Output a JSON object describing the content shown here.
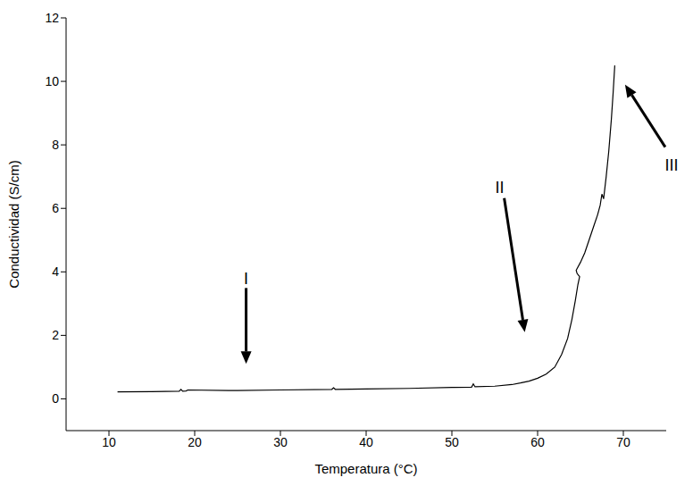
{
  "chart_data": {
    "type": "line",
    "x_label": "Temperatura (°C)",
    "y_label": "Conductividad (S/cm)",
    "color": "#000000",
    "x": [
      11,
      15,
      18.2,
      18.4,
      18.6,
      19,
      19.2,
      25,
      30,
      36,
      36.2,
      36.4,
      40,
      45,
      50,
      52.3,
      52.5,
      52.7,
      55,
      57,
      58,
      59,
      60,
      61,
      62,
      62.8,
      63.5,
      64,
      64.4,
      64.7,
      64.9,
      64.6,
      64.5,
      65,
      65.5,
      66,
      66.5,
      67,
      67.3,
      67.5,
      67.7,
      68,
      68.3,
      68.6,
      68.8,
      69
    ],
    "values": [
      0.22,
      0.23,
      0.24,
      0.3,
      0.24,
      0.25,
      0.28,
      0.26,
      0.28,
      0.3,
      0.35,
      0.3,
      0.31,
      0.33,
      0.36,
      0.37,
      0.47,
      0.38,
      0.4,
      0.45,
      0.5,
      0.56,
      0.65,
      0.78,
      1.0,
      1.4,
      1.9,
      2.5,
      3.1,
      3.6,
      3.85,
      3.95,
      4.05,
      4.3,
      4.6,
      5.0,
      5.4,
      5.8,
      6.1,
      6.45,
      6.3,
      7.0,
      7.8,
      8.8,
      9.6,
      10.5
    ],
    "xlim": [
      5,
      75
    ],
    "xticks": [
      10,
      20,
      30,
      40,
      50,
      60,
      70
    ],
    "ylim": [
      -1,
      12
    ],
    "yticks": [
      0,
      2,
      4,
      6,
      8,
      10,
      12
    ],
    "annotations": [
      {
        "text": "I",
        "x": 26,
        "y": 1.1
      },
      {
        "text": "II",
        "x": 58.5,
        "y": 2.1
      },
      {
        "text": "III",
        "x": 70.2,
        "y": 9.9
      }
    ]
  }
}
